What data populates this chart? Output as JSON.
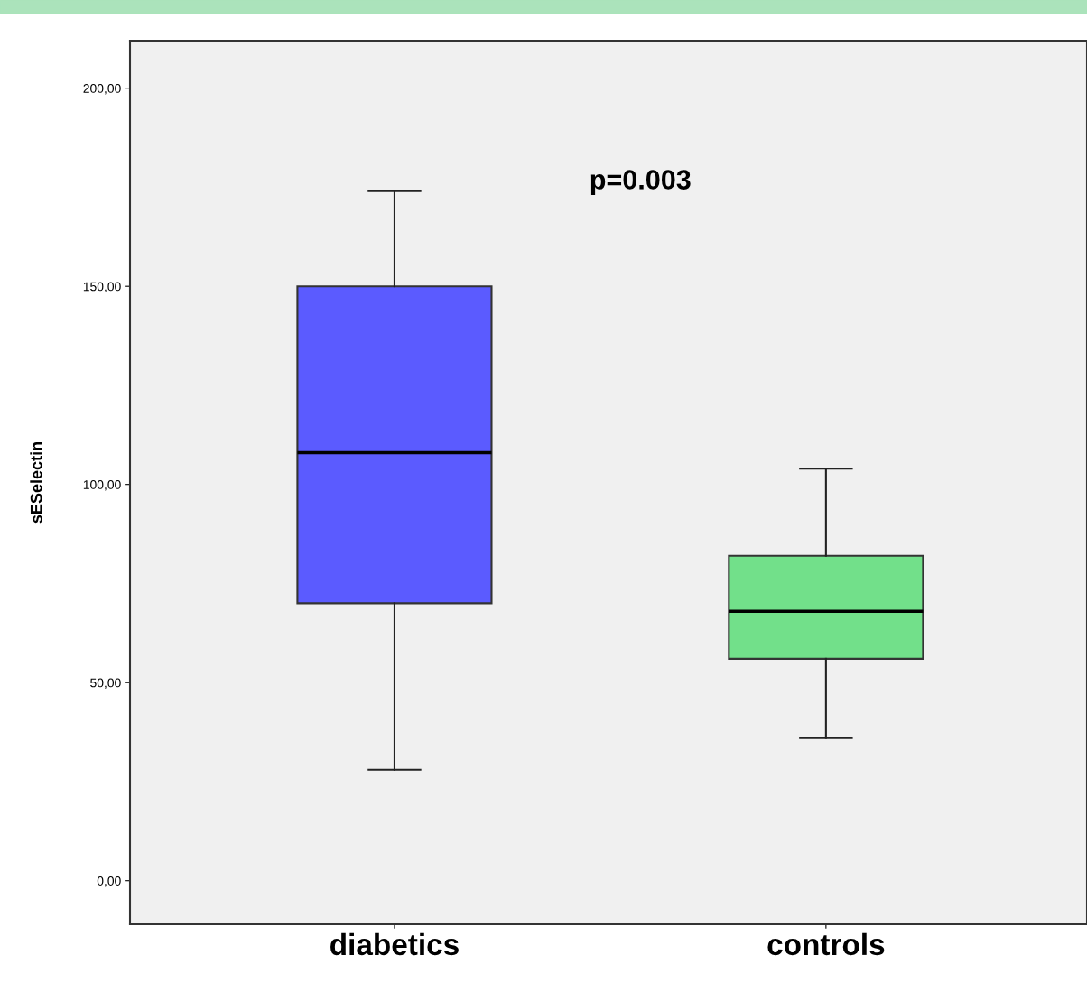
{
  "chart_data": {
    "type": "box",
    "ylabel": "sESelectin",
    "categories": [
      "diabetics",
      "controls"
    ],
    "colors": [
      "#5b5bff",
      "#72e08a"
    ],
    "boxes": [
      {
        "low": 28,
        "q1": 70,
        "median": 108,
        "q3": 150,
        "high": 174
      },
      {
        "low": 36,
        "q1": 56,
        "median": 68,
        "q3": 82,
        "high": 104
      }
    ],
    "ylim": [
      -11,
      212
    ],
    "yticks": [
      {
        "value": 0,
        "label": "0,00"
      },
      {
        "value": 50,
        "label": "50,00"
      },
      {
        "value": 100,
        "label": "100,00"
      },
      {
        "value": 150,
        "label": "150,00"
      },
      {
        "value": 200,
        "label": "200,00"
      }
    ],
    "annotations": [
      "p=0.003"
    ],
    "grid": false
  }
}
